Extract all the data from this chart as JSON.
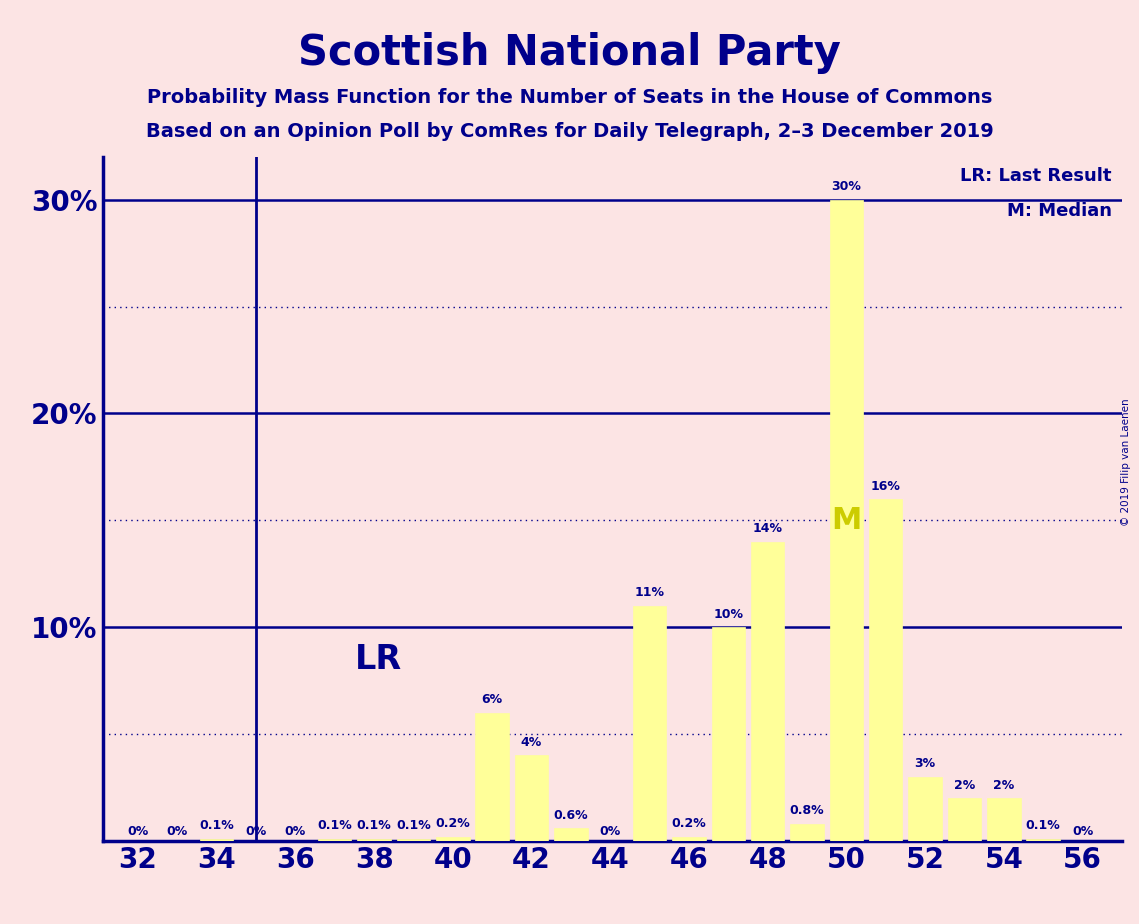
{
  "title": "Scottish National Party",
  "subtitle1": "Probability Mass Function for the Number of Seats in the House of Commons",
  "subtitle2": "Based on an Opinion Poll by ComRes for Daily Telegraph, 2–3 December 2019",
  "copyright": "© 2019 Filip van Laenen",
  "background_color": "#fce4e4",
  "bar_color": "#ffff99",
  "title_color": "#00008B",
  "axis_color": "#00008B",
  "seats": [
    32,
    33,
    34,
    35,
    36,
    37,
    38,
    39,
    40,
    41,
    42,
    43,
    44,
    45,
    46,
    47,
    48,
    49,
    50,
    51,
    52,
    53,
    54,
    55,
    56
  ],
  "values": [
    0.0,
    0.0,
    0.1,
    0.0,
    0.0,
    0.1,
    0.1,
    0.1,
    0.2,
    6.0,
    4.0,
    0.6,
    0.0,
    11.0,
    0.2,
    10.0,
    14.0,
    0.8,
    30.0,
    16.0,
    3.0,
    2.0,
    2.0,
    0.1,
    0.0
  ],
  "show_zero_labels": [
    32,
    33,
    35,
    36,
    44,
    56
  ],
  "last_result_seat": 35,
  "median_seat": 50,
  "ylim": [
    0,
    32
  ],
  "solid_yticks": [
    10,
    20,
    30
  ],
  "dotted_yticks": [
    5,
    15,
    25
  ],
  "figsize": [
    11.39,
    9.24
  ],
  "dpi": 100
}
